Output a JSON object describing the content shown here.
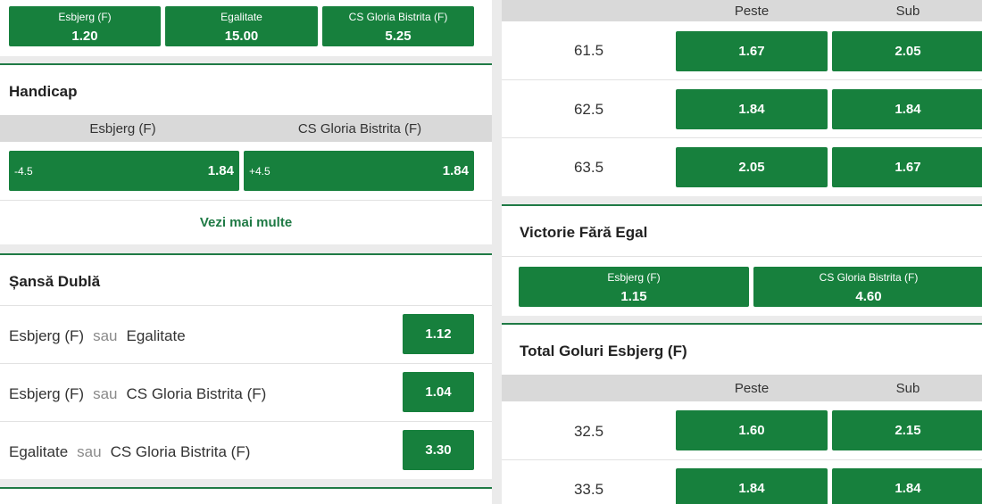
{
  "result_final": {
    "options": [
      {
        "name": "Esbjerg (F)",
        "odd": "1.20"
      },
      {
        "name": "Egalitate",
        "odd": "15.00"
      },
      {
        "name": "CS Gloria Bistrita (F)",
        "odd": "5.25"
      }
    ]
  },
  "handicap": {
    "title": "Handicap",
    "headers": [
      "Esbjerg (F)",
      "CS Gloria Bistrita (F)"
    ],
    "options": [
      {
        "line": "-4.5",
        "odd": "1.84"
      },
      {
        "line": "+4.5",
        "odd": "1.84"
      }
    ],
    "more_label": "Vezi mai multe"
  },
  "double_chance": {
    "title": "Șansă Dublă",
    "sep": "sau",
    "rows": [
      {
        "a": "Esbjerg (F)",
        "b": "Egalitate",
        "odd": "1.12"
      },
      {
        "a": "Esbjerg (F)",
        "b": "CS Gloria Bistrita (F)",
        "odd": "1.04"
      },
      {
        "a": "Egalitate",
        "b": "CS Gloria Bistrita (F)",
        "odd": "3.30"
      }
    ]
  },
  "total_goals": {
    "headers": [
      "Peste",
      "Sub"
    ],
    "rows": [
      {
        "line": "61.5",
        "over": "1.67",
        "under": "2.05"
      },
      {
        "line": "62.5",
        "over": "1.84",
        "under": "1.84"
      },
      {
        "line": "63.5",
        "over": "2.05",
        "under": "1.67"
      }
    ]
  },
  "draw_no_bet": {
    "title": "Victorie Fără Egal",
    "options": [
      {
        "name": "Esbjerg (F)",
        "odd": "1.15"
      },
      {
        "name": "CS Gloria Bistrita (F)",
        "odd": "4.60"
      }
    ]
  },
  "team_goals": {
    "title": "Total Goluri Esbjerg (F)",
    "headers": [
      "Peste",
      "Sub"
    ],
    "rows": [
      {
        "line": "32.5",
        "over": "1.60",
        "under": "2.15"
      },
      {
        "line": "33.5",
        "over": "1.84",
        "under": "1.84"
      }
    ]
  },
  "colors": {
    "accent": "#17803d",
    "header_bg": "#d9d9d9",
    "link": "#1f7a45"
  }
}
